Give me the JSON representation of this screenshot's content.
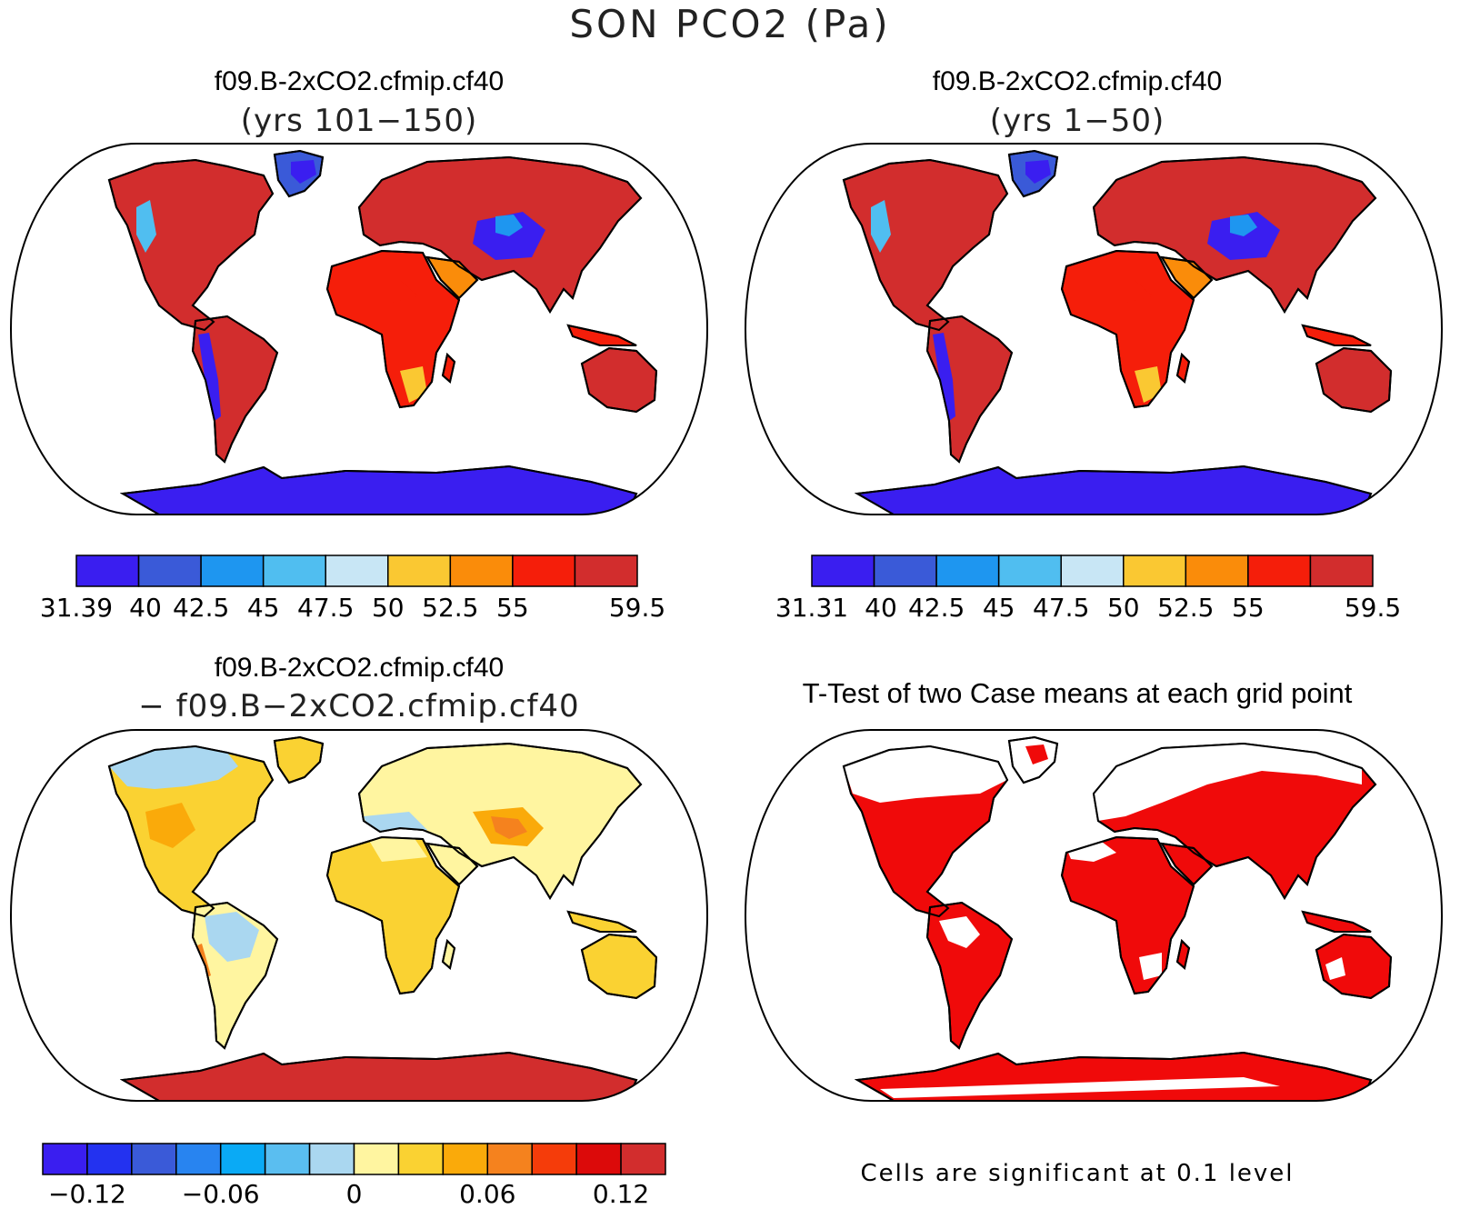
{
  "title": "SON PCO2 (Pa)",
  "panels": [
    {
      "title": "f09.B-2xCO2.cfmip.cf40",
      "subtitle": "(yrs 101−150)"
    },
    {
      "title": "f09.B-2xCO2.cfmip.cf40",
      "subtitle": "(yrs 1−50)"
    },
    {
      "title": "f09.B-2xCO2.cfmip.cf40",
      "subtitle": "− f09.B−2xCO2.cfmip.cf40"
    },
    {
      "title": "T-Test of two Case means at each grid point",
      "note": "Cells are significant at 0.1 level"
    }
  ],
  "chart_data": [
    {
      "type": "heatmap",
      "title": "f09.B-2xCO2.cfmip.cf40 (yrs 101−150)",
      "colorbar": {
        "levels": [
          "31.39",
          "40",
          "42.5",
          "45",
          "47.5",
          "50",
          "52.5",
          "55",
          "59.5"
        ],
        "colors": [
          "#3a1ef0",
          "#3a5ad8",
          "#1e96f0",
          "#50bef0",
          "#c8e6f5",
          "#fac832",
          "#fa8c0a",
          "#f51e0a",
          "#d22d2d"
        ]
      }
    },
    {
      "type": "heatmap",
      "title": "f09.B-2xCO2.cfmip.cf40 (yrs 1−50)",
      "colorbar": {
        "levels": [
          "31.31",
          "40",
          "42.5",
          "45",
          "47.5",
          "50",
          "52.5",
          "55",
          "59.5"
        ],
        "colors": [
          "#3a1ef0",
          "#3a5ad8",
          "#1e96f0",
          "#50bef0",
          "#c8e6f5",
          "#fac832",
          "#fa8c0a",
          "#f51e0a",
          "#d22d2d"
        ]
      }
    },
    {
      "type": "heatmap",
      "title": "f09.B-2xCO2.cfmip.cf40 − f09.B−2xCO2.cfmip.cf40",
      "colorbar": {
        "labels": [
          "−0.12",
          "−0.06",
          "0",
          "0.06",
          "0.12"
        ],
        "colors": [
          "#3a1ef0",
          "#2332f0",
          "#3a5ad8",
          "#2884f0",
          "#0aaaf5",
          "#5abef0",
          "#aad7f0",
          "#fff5a0",
          "#fad232",
          "#faaa0a",
          "#f5821e",
          "#f53c0a",
          "#dc0a0a",
          "#d22d2d"
        ]
      }
    },
    {
      "type": "heatmap",
      "title": "T-Test of two Case means at each grid point",
      "colors": [
        "#f00a0a"
      ]
    }
  ]
}
